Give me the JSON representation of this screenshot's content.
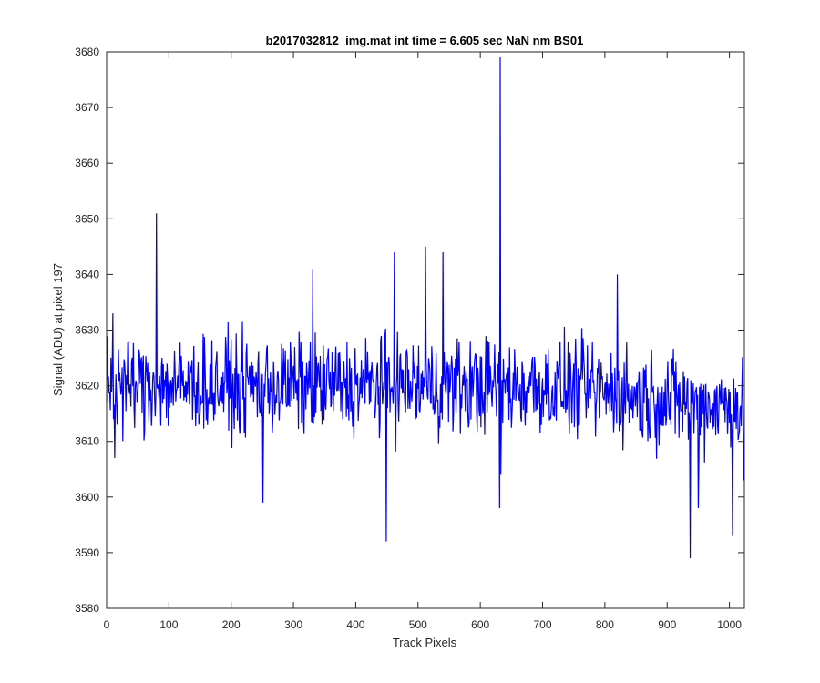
{
  "chart_data": {
    "type": "line",
    "title": "b2017032812_img.mat int time = 6.605 sec  NaN nm BS01",
    "xlabel": "Track Pixels",
    "ylabel": "Signal (ADU) at pixel 197",
    "xlim": [
      0,
      1024
    ],
    "ylim": [
      3580,
      3680
    ],
    "xticks": [
      0,
      100,
      200,
      300,
      400,
      500,
      600,
      700,
      800,
      900,
      1000
    ],
    "yticks": [
      3580,
      3590,
      3600,
      3610,
      3620,
      3630,
      3640,
      3650,
      3660,
      3670,
      3680
    ],
    "grid": false,
    "legend": "none",
    "series_color": "#0000ff",
    "axis_color": "#262626",
    "series": [
      {
        "x_start": 0,
        "x_step": 1,
        "n_points": 1024,
        "baseline": 3620,
        "noise_amplitude": 8,
        "x": [
          0,
          10,
          13,
          80,
          251,
          331,
          449,
          462,
          512,
          540,
          631,
          632,
          633,
          820,
          937,
          950,
          1005,
          1023
        ],
        "values": [
          3617,
          3633,
          3607,
          3651,
          3599,
          3641,
          3592,
          3644,
          3645,
          3644,
          3598,
          3679,
          3604,
          3640,
          3589,
          3598,
          3593,
          3603
        ]
      }
    ]
  }
}
